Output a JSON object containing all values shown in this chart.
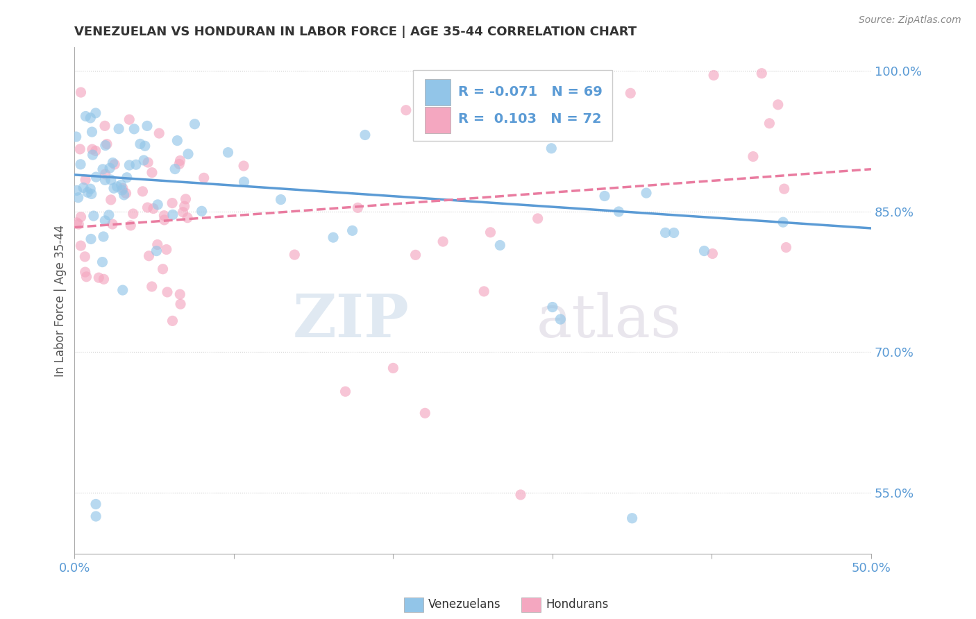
{
  "title": "VENEZUELAN VS HONDURAN IN LABOR FORCE | AGE 35-44 CORRELATION CHART",
  "source": "Source: ZipAtlas.com",
  "ylabel": "In Labor Force | Age 35-44",
  "ytick_labels": [
    "100.0%",
    "85.0%",
    "70.0%",
    "55.0%"
  ],
  "ytick_values": [
    1.0,
    0.85,
    0.7,
    0.55
  ],
  "xmin": 0.0,
  "xmax": 0.5,
  "ymin": 0.485,
  "ymax": 1.025,
  "R_venezuelan": -0.071,
  "N_venezuelan": 69,
  "R_honduran": 0.103,
  "N_honduran": 72,
  "color_venezuelan": "#92c5e8",
  "color_honduran": "#f4a7c0",
  "color_trend_venezuelan": "#5b9bd5",
  "color_trend_honduran": "#e97ca0",
  "watermark_zip": "ZIP",
  "watermark_atlas": "atlas",
  "background_color": "#ffffff",
  "trend_ven_y0": 0.889,
  "trend_ven_y1": 0.832,
  "trend_hon_y0": 0.833,
  "trend_hon_y1": 0.895
}
